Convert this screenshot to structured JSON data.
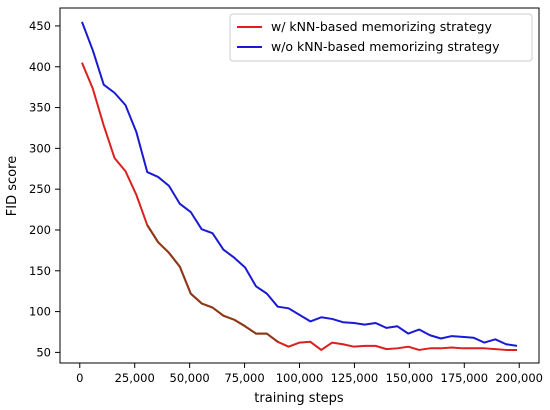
{
  "chart_data": {
    "type": "line",
    "xlabel": "training steps",
    "ylabel": "FID score",
    "xlim": [
      -9000,
      209000
    ],
    "ylim": [
      37,
      472
    ],
    "x_ticks": [
      0,
      25000,
      50000,
      75000,
      100000,
      125000,
      150000,
      175000,
      200000
    ],
    "x_tick_labels": [
      "0",
      "25,000",
      "50,000",
      "75,000",
      "100,000",
      "125,000",
      "150,000",
      "175,000",
      "200,000"
    ],
    "y_ticks": [
      50,
      100,
      150,
      200,
      250,
      300,
      350,
      400,
      450
    ],
    "y_tick_labels": [
      "50",
      "100",
      "150",
      "200",
      "250",
      "300",
      "350",
      "400",
      "450"
    ],
    "grid": false,
    "legend_position": "top-right",
    "series": [
      {
        "name": "w/ kNN-based memorizing strategy",
        "color": "#dd1f1f",
        "x": [
          1000,
          5950,
          10900,
          15850,
          20800,
          25750,
          30700,
          35650,
          40600,
          45550,
          50500,
          55450,
          60400,
          65350,
          70300,
          75250,
          80200,
          85150,
          90100,
          95050,
          100000,
          104950,
          109900,
          114850,
          119800,
          124750,
          129700,
          134650,
          139600,
          144550,
          149500,
          154450,
          159400,
          164350,
          169300,
          174250,
          179200,
          184150,
          189100,
          194050,
          199000
        ],
        "values": [
          405,
          373,
          328,
          288,
          272,
          243,
          206,
          185,
          172,
          155,
          122,
          110,
          105,
          95,
          90,
          82,
          73,
          73,
          63,
          57,
          62,
          63,
          53,
          62,
          60,
          57,
          58,
          58,
          54,
          55,
          57,
          53,
          55,
          55,
          56,
          55,
          55,
          55,
          54,
          53,
          53
        ]
      },
      {
        "name": "w/o kNN-based memorizing strategy",
        "color": "#1a1ad4",
        "x": [
          1000,
          5950,
          10900,
          15850,
          20800,
          25750,
          30700,
          35650,
          40600,
          45550,
          50500,
          55450,
          60400,
          65350,
          70300,
          75250,
          80200,
          85150,
          90100,
          95050,
          100000,
          104950,
          109900,
          114850,
          119800,
          124750,
          129700,
          134650,
          139600,
          144550,
          149500,
          154450,
          159400,
          164350,
          169300,
          174250,
          179200,
          184150,
          189100,
          194050,
          199000
        ],
        "values": [
          455,
          420,
          378,
          368,
          353,
          320,
          271,
          265,
          254,
          232,
          222,
          201,
          196,
          176,
          166,
          154,
          131,
          122,
          106,
          104,
          96,
          88,
          93,
          91,
          87,
          86,
          84,
          86,
          80,
          82,
          73,
          78,
          71,
          67,
          70,
          69,
          68,
          62,
          66,
          60,
          58
        ]
      }
    ],
    "overlap_color": "#8a3a18"
  }
}
